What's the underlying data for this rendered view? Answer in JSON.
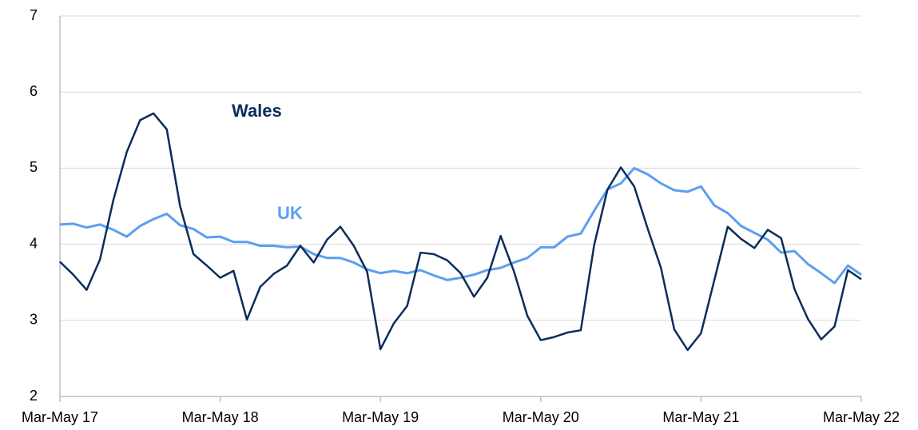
{
  "chart_data": {
    "type": "line",
    "categories": [
      "Mar-May 17",
      null,
      null,
      null,
      null,
      null,
      null,
      null,
      null,
      null,
      null,
      null,
      "Mar-May 18",
      null,
      null,
      null,
      null,
      null,
      null,
      null,
      null,
      null,
      null,
      null,
      "Mar-May 19",
      null,
      null,
      null,
      null,
      null,
      null,
      null,
      null,
      null,
      null,
      null,
      "Mar-May 20",
      null,
      null,
      null,
      null,
      null,
      null,
      null,
      null,
      null,
      null,
      null,
      "Mar-May 21",
      null,
      null,
      null,
      null,
      null,
      null,
      null,
      null,
      null,
      null,
      null,
      "Mar-May 22"
    ],
    "series": [
      {
        "name": "Wales",
        "color": "#0b2d5b",
        "values": [
          3.77,
          3.6,
          3.4,
          3.8,
          4.58,
          5.21,
          5.63,
          5.72,
          5.51,
          4.5,
          3.87,
          3.72,
          3.56,
          3.65,
          3.01,
          3.44,
          3.61,
          3.72,
          3.98,
          3.76,
          4.06,
          4.23,
          3.98,
          3.64,
          2.62,
          2.96,
          3.19,
          3.89,
          3.87,
          3.79,
          3.62,
          3.31,
          3.56,
          4.11,
          3.64,
          3.06,
          2.74,
          2.78,
          2.84,
          2.87,
          3.99,
          4.72,
          5.01,
          4.76,
          4.21,
          3.69,
          2.88,
          2.61,
          2.83,
          3.53,
          4.23,
          4.07,
          3.95,
          4.19,
          4.08,
          3.41,
          3.02,
          2.75,
          2.92,
          3.66,
          3.54
        ]
      },
      {
        "name": "UK",
        "color": "#5b9ff0",
        "values": [
          4.26,
          4.27,
          4.22,
          4.26,
          4.19,
          4.1,
          4.24,
          4.33,
          4.4,
          4.25,
          4.2,
          4.09,
          4.1,
          4.03,
          4.03,
          3.98,
          3.98,
          3.96,
          3.97,
          3.87,
          3.82,
          3.82,
          3.76,
          3.67,
          3.62,
          3.65,
          3.62,
          3.66,
          3.59,
          3.53,
          3.56,
          3.6,
          3.66,
          3.69,
          3.76,
          3.82,
          3.96,
          3.96,
          4.1,
          4.14,
          4.44,
          4.72,
          4.8,
          5.0,
          4.92,
          4.8,
          4.71,
          4.69,
          4.76,
          4.51,
          4.41,
          4.24,
          4.15,
          4.06,
          3.89,
          3.91,
          3.74,
          3.62,
          3.49,
          3.72,
          3.6
        ]
      }
    ],
    "ylim": [
      2,
      7
    ],
    "yticks": [
      2,
      3,
      4,
      5,
      6,
      7
    ],
    "grid": true
  }
}
